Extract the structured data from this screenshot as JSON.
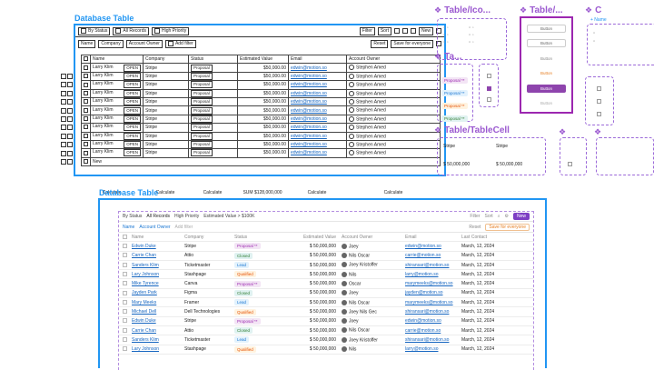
{
  "wire": {
    "title": "Database Table",
    "bar": [
      "By Status",
      "All Records",
      "High Priority"
    ],
    "bar_right": [
      "Filter",
      "Sort",
      "New"
    ],
    "filters": [
      "Name",
      "Company",
      "Account Owner",
      "Add filter"
    ],
    "filter_right": [
      "Reset",
      "Save for everyone"
    ],
    "headers": [
      "Name",
      "Company",
      "Status",
      "Estimated Value",
      "Email",
      "Account Owner"
    ],
    "row": {
      "name": "Larry Klim",
      "open": "OPEN",
      "company": "Stripe",
      "status": "Proposal",
      "value": "$50,000.00",
      "email": "edwin@motion.so",
      "owner": "Stephen Amed"
    },
    "new_label": "New",
    "footer": [
      "Calculate",
      "Calculate",
      "Calculate",
      "SUM $128,000,000",
      "Calculate",
      "Calculate"
    ]
  },
  "comp": {
    "title1": "Table/Ico...",
    "title2": "Table/...",
    "title3": "C",
    "title4": "Ta...",
    "title5": "Table/TableCell",
    "buttons": [
      "Button",
      "Button",
      "Button",
      "Button",
      "Button",
      "Button"
    ],
    "proposals": [
      "Proposal **",
      "Proposal **",
      "Proposal **",
      "Proposal **"
    ],
    "cells": [
      "Stripe",
      "Stripe",
      "$ 50,000,000",
      "$ 50,000,000",
      "$ 50,000,000"
    ],
    "name_label": "+ Name"
  },
  "hifi": {
    "title": "Database Table",
    "bar": [
      "By Status",
      "All Records",
      "High Priority",
      "Estimated Value > $100K"
    ],
    "bar_right": [
      "Filter",
      "Sort",
      "New"
    ],
    "filters": [
      "Name",
      "Account Owner",
      "Add filter"
    ],
    "filter_right": [
      "Reset",
      "Save for everyone"
    ],
    "headers": [
      "Name",
      "Company",
      "Status",
      "Estimated Value",
      "Account Owner",
      "Email",
      "Last Contact"
    ],
    "rows": [
      {
        "name": "Edwin Duke",
        "company": "Stripe",
        "status": "Proposal **",
        "st": "proposal",
        "value": "$ 50,000,000",
        "owner": "Joey",
        "email": "edwin@motion.so",
        "date": "March, 12, 2024"
      },
      {
        "name": "Carrie Chan",
        "company": "Attio",
        "status": "Closed",
        "st": "closed",
        "value": "$ 50,000,000",
        "owner": "Nils  Oscar",
        "email": "carrie@motion.so",
        "date": "March, 12, 2024"
      },
      {
        "name": "Sanders Klim",
        "company": "Ticketmaster",
        "status": "Lead",
        "st": "lead",
        "value": "$ 50,000,000",
        "owner": "Joey  Kristoffer",
        "email": "shiransari@motion.so",
        "date": "March, 12, 2024"
      },
      {
        "name": "Lary Johnson",
        "company": "Stashpage",
        "status": "Qualified",
        "st": "qualified",
        "value": "$ 50,000,000",
        "owner": "Nils",
        "email": "larry@motion.so",
        "date": "March, 12, 2024"
      },
      {
        "name": "Mike Tyrence",
        "company": "Canva",
        "status": "Proposal **",
        "st": "proposal",
        "value": "$ 50,000,000",
        "owner": "Oscar",
        "email": "marymeeks@motion.so",
        "date": "March, 12, 2024"
      },
      {
        "name": "Jayden Park",
        "company": "Figma",
        "status": "Closed",
        "st": "closed",
        "value": "$ 50,000,000",
        "owner": "Joey",
        "email": "jayden@motion.so",
        "date": "March, 12, 2024"
      },
      {
        "name": "Mary Meeks",
        "company": "Framer",
        "status": "Lead",
        "st": "lead",
        "value": "$ 50,000,000",
        "owner": "Nils  Oscar",
        "email": "marymeeks@motion.so",
        "date": "March, 12, 2024"
      },
      {
        "name": "Michael Dell",
        "company": "Dell Technologies",
        "status": "Qualified",
        "st": "qualified",
        "value": "$ 50,000,000",
        "owner": "Joey  Nils  Gec",
        "email": "shiransari@motion.so",
        "date": "March, 12, 2024"
      },
      {
        "name": "Edwin Duke",
        "company": "Stripe",
        "status": "Proposal **",
        "st": "proposal",
        "value": "$ 50,000,000",
        "owner": "Joey",
        "email": "edwin@motion.so",
        "date": "March, 12, 2024"
      },
      {
        "name": "Carrie Chan",
        "company": "Attio",
        "status": "Closed",
        "st": "closed",
        "value": "$ 50,000,000",
        "owner": "Nils  Oscar",
        "email": "carrie@motion.so",
        "date": "March, 12, 2024"
      },
      {
        "name": "Sanders Klim",
        "company": "Ticketmaster",
        "status": "Lead",
        "st": "lead",
        "value": "$ 50,000,000",
        "owner": "Joey  Kristoffer",
        "email": "shiransari@motion.so",
        "date": "March, 12, 2024"
      },
      {
        "name": "Lary Johnson",
        "company": "Stashpage",
        "status": "Qualified",
        "st": "qualified",
        "value": "$ 50,000,000",
        "owner": "Nils",
        "email": "larry@motion.so",
        "date": "March, 12, 2024"
      }
    ]
  }
}
